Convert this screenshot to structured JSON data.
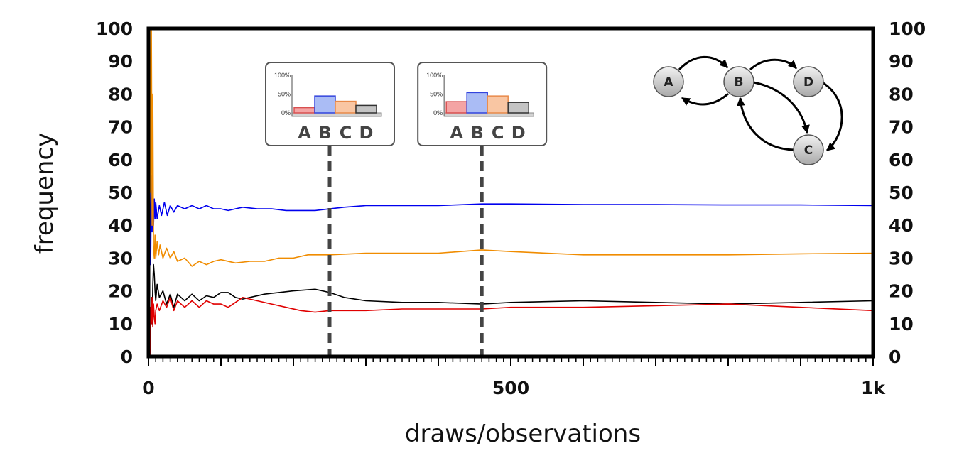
{
  "chart_data": {
    "type": "line",
    "xlabel": "draws/observations",
    "ylabel": "frequency",
    "xlim": [
      0,
      1000
    ],
    "ylim": [
      0,
      100
    ],
    "x_ticks": [
      0,
      500,
      1000
    ],
    "x_tick_labels": [
      "0",
      "500",
      "1k"
    ],
    "x_minor_tick_step": 10,
    "x_major_tick_step": 100,
    "y_ticks": [
      0,
      10,
      20,
      30,
      40,
      50,
      60,
      70,
      80,
      90,
      100
    ],
    "y_tick_labels": [
      "0",
      "10",
      "20",
      "30",
      "40",
      "50",
      "60",
      "70",
      "80",
      "90",
      "100"
    ],
    "grid": false,
    "series": [
      {
        "color": "#0000ee",
        "points": [
          [
            1,
            0
          ],
          [
            2,
            50
          ],
          [
            3,
            28
          ],
          [
            4,
            55
          ],
          [
            5,
            38
          ],
          [
            6,
            52
          ],
          [
            7,
            40
          ],
          [
            8,
            48
          ],
          [
            9,
            42
          ],
          [
            10,
            47
          ],
          [
            12,
            42
          ],
          [
            15,
            46
          ],
          [
            18,
            43
          ],
          [
            22,
            47
          ],
          [
            26,
            43
          ],
          [
            30,
            46
          ],
          [
            35,
            44
          ],
          [
            40,
            46
          ],
          [
            50,
            45
          ],
          [
            60,
            46
          ],
          [
            70,
            45
          ],
          [
            80,
            46
          ],
          [
            90,
            45
          ],
          [
            100,
            45
          ],
          [
            110,
            44.5
          ],
          [
            130,
            45.5
          ],
          [
            150,
            45
          ],
          [
            170,
            45
          ],
          [
            190,
            44.5
          ],
          [
            210,
            44.5
          ],
          [
            230,
            44.5
          ],
          [
            250,
            45
          ],
          [
            270,
            45.5
          ],
          [
            300,
            46
          ],
          [
            350,
            46
          ],
          [
            400,
            46
          ],
          [
            460,
            46.5
          ],
          [
            500,
            46.5
          ],
          [
            600,
            46.3
          ],
          [
            700,
            46.3
          ],
          [
            800,
            46.2
          ],
          [
            900,
            46.2
          ],
          [
            1000,
            46
          ]
        ]
      },
      {
        "color": "#f08c00",
        "points": [
          [
            1,
            100
          ],
          [
            2,
            100
          ],
          [
            3,
            50
          ],
          [
            4,
            100
          ],
          [
            5,
            40
          ],
          [
            6,
            80
          ],
          [
            7,
            33
          ],
          [
            8,
            30
          ],
          [
            9,
            37
          ],
          [
            10,
            30
          ],
          [
            12,
            35
          ],
          [
            14,
            31
          ],
          [
            16,
            34
          ],
          [
            20,
            30
          ],
          [
            25,
            33
          ],
          [
            30,
            30
          ],
          [
            35,
            32
          ],
          [
            40,
            29
          ],
          [
            50,
            30
          ],
          [
            60,
            27.5
          ],
          [
            70,
            29
          ],
          [
            80,
            28
          ],
          [
            90,
            29
          ],
          [
            100,
            29.5
          ],
          [
            120,
            28.5
          ],
          [
            140,
            29
          ],
          [
            160,
            29
          ],
          [
            180,
            30
          ],
          [
            200,
            30
          ],
          [
            220,
            31
          ],
          [
            250,
            31
          ],
          [
            300,
            31.5
          ],
          [
            350,
            31.5
          ],
          [
            400,
            31.5
          ],
          [
            460,
            32.5
          ],
          [
            500,
            32
          ],
          [
            600,
            31
          ],
          [
            700,
            31
          ],
          [
            800,
            31
          ],
          [
            900,
            31.3
          ],
          [
            1000,
            31.5
          ]
        ]
      },
      {
        "color": "#000000",
        "points": [
          [
            1,
            0
          ],
          [
            2,
            0
          ],
          [
            3,
            10
          ],
          [
            4,
            18
          ],
          [
            5,
            10
          ],
          [
            6,
            22
          ],
          [
            7,
            28
          ],
          [
            8,
            25
          ],
          [
            9,
            20
          ],
          [
            10,
            17
          ],
          [
            12,
            22
          ],
          [
            15,
            18
          ],
          [
            20,
            20
          ],
          [
            25,
            16
          ],
          [
            30,
            19
          ],
          [
            35,
            15
          ],
          [
            40,
            19
          ],
          [
            50,
            17
          ],
          [
            60,
            19
          ],
          [
            70,
            17
          ],
          [
            80,
            18.5
          ],
          [
            90,
            18
          ],
          [
            100,
            19.5
          ],
          [
            110,
            19.5
          ],
          [
            120,
            18
          ],
          [
            130,
            17.5
          ],
          [
            140,
            18
          ],
          [
            160,
            19
          ],
          [
            180,
            19.5
          ],
          [
            200,
            20
          ],
          [
            230,
            20.5
          ],
          [
            250,
            19.5
          ],
          [
            270,
            18
          ],
          [
            300,
            17
          ],
          [
            350,
            16.5
          ],
          [
            400,
            16.5
          ],
          [
            460,
            16
          ],
          [
            500,
            16.5
          ],
          [
            600,
            17
          ],
          [
            700,
            16.5
          ],
          [
            800,
            16
          ],
          [
            900,
            16.5
          ],
          [
            1000,
            17
          ]
        ]
      },
      {
        "color": "#e00000",
        "points": [
          [
            1,
            0
          ],
          [
            2,
            0
          ],
          [
            3,
            15
          ],
          [
            4,
            10
          ],
          [
            5,
            18
          ],
          [
            6,
            9
          ],
          [
            7,
            16
          ],
          [
            8,
            12
          ],
          [
            9,
            10
          ],
          [
            10,
            14
          ],
          [
            12,
            16
          ],
          [
            15,
            14
          ],
          [
            20,
            17
          ],
          [
            25,
            15
          ],
          [
            30,
            18
          ],
          [
            35,
            14
          ],
          [
            40,
            17
          ],
          [
            50,
            15
          ],
          [
            60,
            17
          ],
          [
            70,
            15
          ],
          [
            80,
            17
          ],
          [
            90,
            16
          ],
          [
            100,
            16
          ],
          [
            110,
            15
          ],
          [
            120,
            16.5
          ],
          [
            130,
            18
          ],
          [
            150,
            17
          ],
          [
            170,
            16
          ],
          [
            190,
            15
          ],
          [
            210,
            14
          ],
          [
            230,
            13.5
          ],
          [
            250,
            14
          ],
          [
            270,
            14
          ],
          [
            300,
            14
          ],
          [
            350,
            14.5
          ],
          [
            400,
            14.5
          ],
          [
            460,
            14.5
          ],
          [
            500,
            15
          ],
          [
            600,
            15
          ],
          [
            700,
            15.5
          ],
          [
            800,
            16
          ],
          [
            900,
            15
          ],
          [
            1000,
            14
          ]
        ]
      }
    ]
  },
  "insets": [
    {
      "x_value": 250,
      "y_tick_labels": [
        "100%",
        "50%",
        "0%"
      ],
      "categories": [
        "A",
        "B",
        "C",
        "D"
      ],
      "values": [
        14,
        45,
        31,
        20
      ],
      "colors": [
        "#f4a4a4",
        "#aabcf5",
        "#f9c6a3",
        "#c4c4c4"
      ],
      "edge_colors": [
        "#d85050",
        "#3344dd",
        "#e88a4a",
        "#333333"
      ]
    },
    {
      "x_value": 460,
      "y_tick_labels": [
        "100%",
        "50%",
        "0%"
      ],
      "categories": [
        "A",
        "B",
        "C",
        "D"
      ],
      "values": [
        30,
        54,
        45,
        28
      ],
      "colors": [
        "#f4a4a4",
        "#aabcf5",
        "#f9c6a3",
        "#c4c4c4"
      ],
      "edge_colors": [
        "#d85050",
        "#3344dd",
        "#e88a4a",
        "#333333"
      ]
    }
  ],
  "graph": {
    "nodes": [
      "A",
      "B",
      "D",
      "C"
    ],
    "edges": [
      [
        "A",
        "B"
      ],
      [
        "B",
        "A"
      ],
      [
        "B",
        "D"
      ],
      [
        "B",
        "C"
      ],
      [
        "D",
        "C"
      ],
      [
        "C",
        "B"
      ]
    ]
  }
}
